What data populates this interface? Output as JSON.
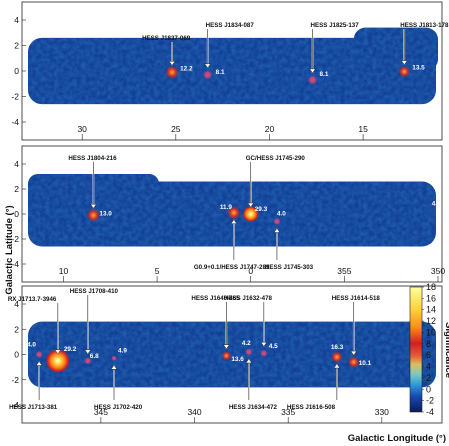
{
  "chart_data": {
    "type": "heatmap",
    "xlabel": "Galactic Longitude (°)",
    "ylabel": "Galactic Latitude (°)",
    "colorbar": {
      "label": "Significance",
      "range": [
        -4,
        18
      ],
      "ticks": [
        -4,
        -2,
        0,
        2,
        4,
        6,
        8,
        10,
        12,
        14,
        16,
        18
      ],
      "colors": [
        "#0a1a5c",
        "#1747b0",
        "#2f9bd8",
        "#7cc7c2",
        "#d9c15a",
        "#e85a3a",
        "#d1201e",
        "#ff8c1a",
        "#ffd23a",
        "#ffff9a"
      ]
    },
    "panels": [
      {
        "x_range": [
          33,
          11
        ],
        "y_range": [
          -4,
          4
        ],
        "x_ticks": [
          30,
          25,
          20,
          15
        ],
        "y_ticks": [
          4,
          2,
          0,
          -2,
          -4
        ],
        "sources": [
          {
            "name": "HESS J1837-069",
            "l": 25.2,
            "b": -0.1,
            "sig": "12.2"
          },
          {
            "name": "HESS J1834-087",
            "l": 23.3,
            "b": -0.3,
            "sig": "8.1"
          },
          {
            "name": "HESS J1825-137",
            "l": 17.7,
            "b": -0.7,
            "sig": "8.1"
          },
          {
            "name": "HESS J1813-178",
            "l": 12.8,
            "b": -0.05,
            "sig": "13.5"
          }
        ]
      },
      {
        "x_range": [
          12,
          -10
        ],
        "y_range": [
          -4,
          4
        ],
        "x_ticks": [
          10,
          5,
          0,
          355,
          350
        ],
        "y_ticks": [
          4,
          2,
          0,
          -2,
          -4
        ],
        "extra_labels": [
          {
            "text": "4.0",
            "l": -10.2,
            "b": 0.7
          }
        ],
        "sources": [
          {
            "name": "HESS J1804-216",
            "l": 8.4,
            "b": -0.1,
            "sig": "13.0"
          },
          {
            "name": "GC/HESS J1745-290",
            "l": 0.0,
            "b": 0.0,
            "sig": "29.3"
          },
          {
            "name": "G0.9+0.1/HESS J1747-281",
            "l": 0.9,
            "b": 0.1,
            "sig": "11.9"
          },
          {
            "name": "HESS J1745-303",
            "l": -1.4,
            "b": -0.6,
            "sig": "4.0"
          }
        ]
      },
      {
        "x_range": [
          349,
          327
        ],
        "y_range": [
          -4,
          4
        ],
        "x_ticks": [
          345,
          340,
          335,
          330
        ],
        "y_ticks": [
          4,
          2,
          0,
          -2,
          -4
        ],
        "sources": [
          {
            "name": "HESS J1713-381",
            "l": 348.3,
            "b": 0.0,
            "sig": "4.0"
          },
          {
            "name": "RX J1713.7-3946",
            "l": 347.3,
            "b": -0.5,
            "sig": "29.2"
          },
          {
            "name": "HESS J1708-410",
            "l": 345.7,
            "b": -0.5,
            "sig": "6.8"
          },
          {
            "name": "HESS J1702-420",
            "l": 344.3,
            "b": -0.3,
            "sig": "4.9"
          },
          {
            "name": "HESS J1640-465",
            "l": 338.3,
            "b": -0.1,
            "sig": "13.6"
          },
          {
            "name": "HESS J1634-472",
            "l": 337.1,
            "b": 0.2,
            "sig": "4.2"
          },
          {
            "name": "HESS J1632-478",
            "l": 336.3,
            "b": 0.1,
            "sig": "4.5"
          },
          {
            "name": "HESS J1616-508",
            "l": 332.4,
            "b": -0.2,
            "sig": "16.3"
          },
          {
            "name": "HESS J1614-518",
            "l": 331.5,
            "b": -0.6,
            "sig": "10.1"
          }
        ]
      }
    ]
  }
}
